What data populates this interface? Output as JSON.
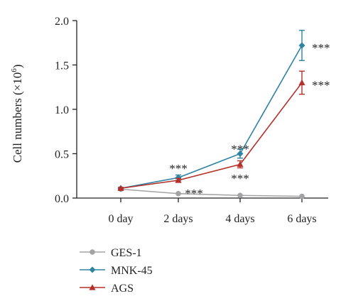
{
  "chart_data": {
    "type": "line",
    "ylabel": "Cell numbers (×10",
    "ylabel_sup": "6",
    "ylabel_close": ")",
    "categories": [
      "0 day",
      "2 days",
      "4 days",
      "6 days"
    ],
    "ylim": [
      0,
      2.0
    ],
    "yticks": [
      "0.0",
      "0.5",
      "1.0",
      "1.5",
      "2.0"
    ],
    "ytick_values": [
      0,
      0.5,
      1.0,
      1.5,
      2.0
    ],
    "series": [
      {
        "name": "GES-1",
        "color": "#a3a3a6",
        "marker": "circle",
        "values": [
          0.1,
          0.05,
          0.03,
          0.02
        ],
        "errors": [
          0,
          0,
          0,
          0
        ]
      },
      {
        "name": "MNK-45",
        "color": "#2e83a3",
        "marker": "diamond",
        "values": [
          0.11,
          0.23,
          0.5,
          1.72
        ],
        "errors": [
          0.01,
          0.03,
          0.05,
          0.17
        ]
      },
      {
        "name": "AGS",
        "color": "#b5302a",
        "marker": "triangle",
        "values": [
          0.11,
          0.2,
          0.38,
          1.3
        ],
        "errors": [
          0.01,
          0.02,
          0.04,
          0.13
        ]
      }
    ],
    "annotations": [
      {
        "text": "***",
        "category": 1,
        "y": 0.36
      },
      {
        "text": "***",
        "category": 1,
        "y": 0.08
      },
      {
        "text": "***",
        "category": 2,
        "y": 0.58
      },
      {
        "text": "***",
        "category": 2,
        "y": 0.25
      },
      {
        "text": "***",
        "category": 3,
        "y": 1.72,
        "side": "right"
      },
      {
        "text": "***",
        "category": 3,
        "y": 1.3,
        "side": "right"
      }
    ],
    "legend_position": "bottom-left",
    "grid": false
  }
}
